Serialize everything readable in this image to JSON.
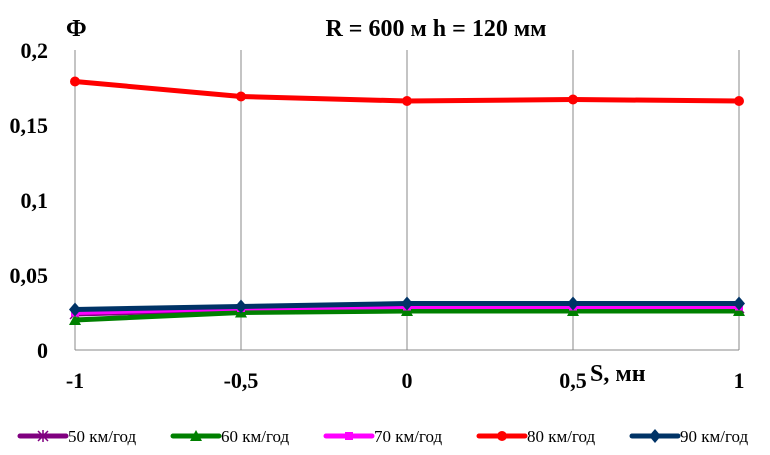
{
  "chart_data": {
    "type": "line",
    "title": "R = 600 м  h = 120 мм",
    "ylabel": "Ф",
    "xlabel": "S, мн",
    "x": [
      -1,
      -0.5,
      0,
      0.5,
      1
    ],
    "xticks": [
      "-1",
      "-0,5",
      "0",
      "0,5",
      "1"
    ],
    "yticks": [
      "0",
      "0,05",
      "0,1",
      "0,15",
      "0,2"
    ],
    "ylim": [
      0,
      0.2
    ],
    "xlim": [
      -1,
      1
    ],
    "grid": "vertical",
    "legend": "bottom",
    "series": [
      {
        "name": "50 км/год",
        "color": "#800080",
        "marker": "star",
        "values": [
          0.024,
          0.027,
          0.028,
          0.028,
          0.028
        ]
      },
      {
        "name": "60 км/год",
        "color": "#008000",
        "marker": "triangle",
        "values": [
          0.02,
          0.025,
          0.026,
          0.026,
          0.026
        ]
      },
      {
        "name": "70 км/год",
        "color": "#ff00ff",
        "marker": "square",
        "values": [
          0.025,
          0.028,
          0.029,
          0.029,
          0.029
        ]
      },
      {
        "name": "80 км/год",
        "color": "#ff0000",
        "marker": "circle",
        "values": [
          0.179,
          0.169,
          0.166,
          0.167,
          0.166
        ]
      },
      {
        "name": "90 км/год",
        "color": "#003366",
        "marker": "diamond",
        "values": [
          0.027,
          0.029,
          0.031,
          0.031,
          0.031
        ]
      }
    ]
  }
}
